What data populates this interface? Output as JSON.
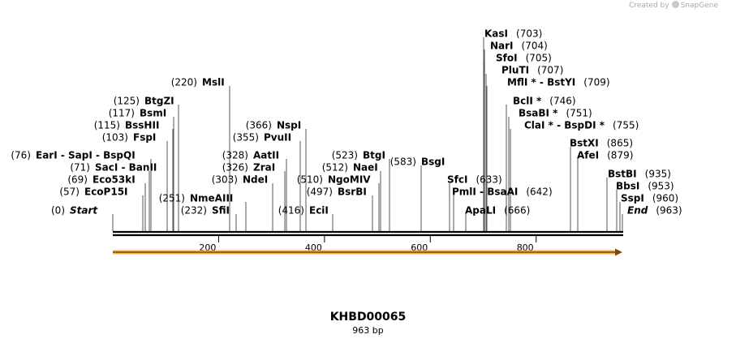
{
  "credit": {
    "prefix": "Created by",
    "brand": "SnapGene"
  },
  "sequence": {
    "name": "KHBD00065",
    "length_label": "963 bp",
    "length": 963
  },
  "axis": {
    "ticks": [
      200,
      400,
      600,
      800
    ]
  },
  "feature": {
    "name": "orf-arrow",
    "start": 1,
    "end": 963,
    "color": "#f0b24a"
  },
  "sites": [
    {
      "name": "Start",
      "pos": "(0)",
      "italic": true
    },
    {
      "name": "EcoP15I",
      "pos": "(57)"
    },
    {
      "name": "Eco53kI",
      "pos": "(69)"
    },
    {
      "name": "SacI - BanII",
      "pos": "(71)"
    },
    {
      "name": "EarI - SapI - BspQI",
      "pos": "(76)"
    },
    {
      "name": "FspI",
      "pos": "(103)"
    },
    {
      "name": "BssHII",
      "pos": "(115)"
    },
    {
      "name": "BsmI",
      "pos": "(117)"
    },
    {
      "name": "BtgZI",
      "pos": "(125)"
    },
    {
      "name": "MslI",
      "pos": "(220)"
    },
    {
      "name": "SfiI",
      "pos": "(232)"
    },
    {
      "name": "NmeAIII",
      "pos": "(251)"
    },
    {
      "name": "NdeI",
      "pos": "(303)"
    },
    {
      "name": "ZraI",
      "pos": "(326)"
    },
    {
      "name": "AatII",
      "pos": "(328)"
    },
    {
      "name": "PvuII",
      "pos": "(355)"
    },
    {
      "name": "NspI",
      "pos": "(366)"
    },
    {
      "name": "EciI",
      "pos": "(416)"
    },
    {
      "name": "BsrBI",
      "pos": "(497)"
    },
    {
      "name": "NgoMIV",
      "pos": "(510)"
    },
    {
      "name": "NaeI",
      "pos": "(512)"
    },
    {
      "name": "BtgI",
      "pos": "(523)"
    },
    {
      "name": "BsgI",
      "pos": "(583)"
    },
    {
      "name": "SfcI",
      "pos": "(633)"
    },
    {
      "name": "PmlI - BsaAI",
      "pos": "(642)"
    },
    {
      "name": "ApaLI",
      "pos": "(666)"
    },
    {
      "name": "KasI",
      "pos": "(703)"
    },
    {
      "name": "NarI",
      "pos": "(704)"
    },
    {
      "name": "SfoI",
      "pos": "(705)"
    },
    {
      "name": "PluTI",
      "pos": "(707)"
    },
    {
      "name": "MflI * - BstYI",
      "pos": "(709)"
    },
    {
      "name": "BclI *",
      "pos": "(746)"
    },
    {
      "name": "BsaBI *",
      "pos": "(751)"
    },
    {
      "name": "ClaI * - BspDI *",
      "pos": "(755)"
    },
    {
      "name": "BstXI",
      "pos": "(865)"
    },
    {
      "name": "AfeI",
      "pos": "(879)"
    },
    {
      "name": "BstBI",
      "pos": "(935)"
    },
    {
      "name": "BbsI",
      "pos": "(953)"
    },
    {
      "name": "SspI",
      "pos": "(960)"
    },
    {
      "name": "End",
      "pos": "(963)",
      "italic": true
    }
  ]
}
